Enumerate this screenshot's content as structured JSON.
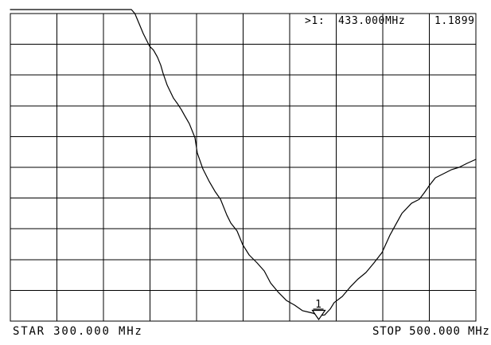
{
  "screen": {
    "background_color": "#ffffff",
    "line_color": "#000000"
  },
  "chart_data": {
    "type": "line",
    "title": "",
    "xlabel": "",
    "ylabel": "",
    "x_axis": {
      "unit": "MHz",
      "start_mhz": 300.0,
      "stop_mhz": 500.0,
      "start_label": "STAR 300.000 MHz",
      "stop_label": "STOP 500.000 MHz",
      "divisions": 10
    },
    "y_axis": {
      "divisions": 10,
      "tick_labels": [],
      "note": "vertical scale unlabeled on screen; series y values are in grid divisions from the top border (0 = top edge, 10 = bottom edge); trace is clipped flat just above the top border at left"
    },
    "grid": {
      "visible": true,
      "cols": 10,
      "rows": 10
    },
    "legend": {
      "visible": false
    },
    "marker": {
      "id": "1",
      "frequency_mhz": 433.0,
      "value": 1.1899,
      "readout_prefix": ">1:",
      "readout_frequency": "433.000",
      "readout_unit": "MHz",
      "readout_value": "1.1899"
    },
    "series": [
      {
        "name": "trace",
        "points": [
          [
            300.0,
            -0.13
          ],
          [
            352.0,
            -0.13
          ],
          [
            353.5,
            0.0
          ],
          [
            355.4,
            0.34
          ],
          [
            357.1,
            0.65
          ],
          [
            359.8,
            1.06
          ],
          [
            361.5,
            1.19
          ],
          [
            363.2,
            1.42
          ],
          [
            364.6,
            1.68
          ],
          [
            365.6,
            1.94
          ],
          [
            367.4,
            2.33
          ],
          [
            368.4,
            2.49
          ],
          [
            370.1,
            2.75
          ],
          [
            371.8,
            2.93
          ],
          [
            373.5,
            3.13
          ],
          [
            374.9,
            3.32
          ],
          [
            376.9,
            3.58
          ],
          [
            379.3,
            4.04
          ],
          [
            380.3,
            4.53
          ],
          [
            382.7,
            5.05
          ],
          [
            385.5,
            5.47
          ],
          [
            387.9,
            5.78
          ],
          [
            390.3,
            6.04
          ],
          [
            393.0,
            6.55
          ],
          [
            394.7,
            6.81
          ],
          [
            397.4,
            7.07
          ],
          [
            399.8,
            7.51
          ],
          [
            402.6,
            7.85
          ],
          [
            406.0,
            8.11
          ],
          [
            409.1,
            8.37
          ],
          [
            411.8,
            8.76
          ],
          [
            415.2,
            9.07
          ],
          [
            418.6,
            9.33
          ],
          [
            422.1,
            9.48
          ],
          [
            425.5,
            9.66
          ],
          [
            429.9,
            9.74
          ],
          [
            432.3,
            9.82
          ],
          [
            435.0,
            9.8
          ],
          [
            437.4,
            9.61
          ],
          [
            439.1,
            9.4
          ],
          [
            442.6,
            9.2
          ],
          [
            446.0,
            8.89
          ],
          [
            449.4,
            8.63
          ],
          [
            452.8,
            8.42
          ],
          [
            456.2,
            8.11
          ],
          [
            459.7,
            7.77
          ],
          [
            463.1,
            7.2
          ],
          [
            465.5,
            6.87
          ],
          [
            468.2,
            6.5
          ],
          [
            472.3,
            6.17
          ],
          [
            475.7,
            6.04
          ],
          [
            477.8,
            5.83
          ],
          [
            480.2,
            5.57
          ],
          [
            482.6,
            5.34
          ],
          [
            486.0,
            5.21
          ],
          [
            489.4,
            5.08
          ],
          [
            492.8,
            5.0
          ],
          [
            496.2,
            4.87
          ],
          [
            500.0,
            4.74
          ]
        ]
      }
    ]
  }
}
